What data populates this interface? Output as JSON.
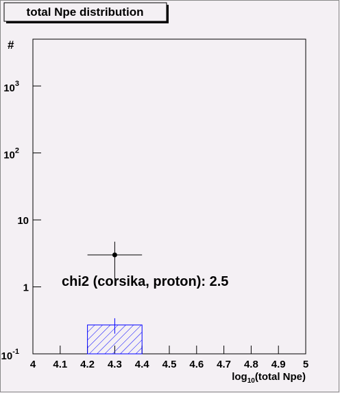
{
  "chart_data": {
    "type": "histogram",
    "title": "total Npe distribution",
    "y_label": "#",
    "x_label": {
      "base": "log",
      "sub": "10",
      "after": "(total Npe)"
    },
    "annotation": "chi2 (corsika, proton): 2.5",
    "xlim": [
      4,
      5
    ],
    "xticks": [
      4,
      4.1,
      4.2,
      4.3,
      4.4,
      4.5,
      4.6,
      4.7,
      4.8,
      4.9,
      5
    ],
    "ylim": [
      0.1,
      5000
    ],
    "ylog": true,
    "yticks": [
      {
        "value": 0.1,
        "label": "10",
        "exponent": "-1"
      },
      1,
      10,
      {
        "value": 100,
        "label": "10",
        "exponent": "2"
      },
      {
        "value": 1000,
        "label": "10",
        "exponent": "3"
      }
    ],
    "series": [
      {
        "kind": "hist",
        "color": "#0000ff",
        "bins": [
          4.2,
          4.4
        ],
        "values": [
          0.27
        ],
        "errors": [
          0.07
        ]
      },
      {
        "kind": "points",
        "color": "#000000",
        "x": [
          4.3
        ],
        "values": [
          3
        ],
        "errors": [
          1.73
        ],
        "xerr": [
          0.1
        ]
      }
    ]
  }
}
